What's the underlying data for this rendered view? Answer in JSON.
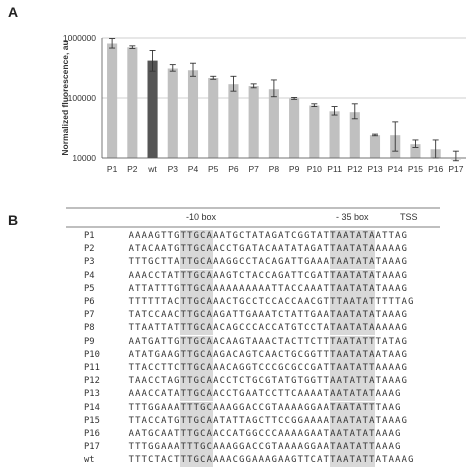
{
  "panels": {
    "a": "A",
    "b": "B"
  },
  "chart_data": {
    "type": "bar",
    "scale": "log",
    "ylabel": "Normalized fluorescence, au",
    "yticks": [
      10000,
      100000,
      1000000
    ],
    "ytick_labels": [
      "10000",
      "100000",
      "1000000"
    ],
    "ylim": [
      10000,
      1000000
    ],
    "grid": true,
    "categories": [
      "P1",
      "P2",
      "wt",
      "P3",
      "P4",
      "P5",
      "P6",
      "P7",
      "P8",
      "P9",
      "P10",
      "P11",
      "P12",
      "P13",
      "P14",
      "P15",
      "P16",
      "P17"
    ],
    "values": [
      810000,
      700000,
      420000,
      310000,
      290000,
      215000,
      170000,
      158000,
      140000,
      98000,
      75000,
      60000,
      58000,
      24000,
      24000,
      17000,
      14000,
      9500
    ],
    "errors_upper": [
      980000,
      740000,
      620000,
      360000,
      380000,
      230000,
      230000,
      172000,
      200000,
      102000,
      80000,
      72000,
      80000,
      25000,
      40000,
      20000,
      20000,
      13000
    ],
    "errors_lower": [
      680000,
      670000,
      280000,
      280000,
      230000,
      205000,
      130000,
      148000,
      105000,
      95000,
      72000,
      52000,
      45000,
      23500,
      13000,
      15000,
      10000,
      9000
    ],
    "highlight_category": "wt",
    "colors": {
      "bar": "#c0c0c0",
      "highlight": "#555555",
      "error": "#333333",
      "grid": "#bfbfbf"
    }
  },
  "alignment": {
    "headers": {
      "box10": "-10 box",
      "box35": "- 35 box",
      "tss": "TSS"
    },
    "rows": [
      {
        "name": "P1",
        "seq": "AAAAGTTGTTGCAAATGCTATAGATCGGTATTAATATAATTAG"
      },
      {
        "name": "P2",
        "seq": "ATACAATGTTGCAACCTGATACAATATAGATTAATATAAAAAG"
      },
      {
        "name": "P3",
        "seq": "TTTGCTTATTGCAAAGGCCTACAGATTGAAATAATATATAAAG"
      },
      {
        "name": "P4",
        "seq": "AAACCTATTTGCAAAGTCTACCAGATTCGATTAATATATAAAG"
      },
      {
        "name": "P5",
        "seq": "ATTATTTGTTGCAAAAAAAAAATTACCAAATTAATATATAAAG"
      },
      {
        "name": "P6",
        "seq": "TTTTTTACTTGCAAACTGCCTCCACCAACGTTTAATATTTTTAG"
      },
      {
        "name": "P7",
        "seq": "TATCCAACTTGCAAGATTGAAATCTATTGAATAATATATAAAG"
      },
      {
        "name": "P8",
        "seq": "TTAATTATTTGCAACAGCCCACCATGTCCTATAATATAAAAAG"
      },
      {
        "name": "P9",
        "seq": "AATGATTGTTGCAACAAGTAAACTACTTCTTTAATATTTATAG"
      },
      {
        "name": "P10",
        "seq": "ATATGAAGTTGCAAGACAGTCAACTGCGGTTTAATATAATAAG"
      },
      {
        "name": "P11",
        "seq": "TTACCTTCTTGCAAACAGGTCCCGCGCCGATTAATATTAAAAG"
      },
      {
        "name": "P12",
        "seq": "TAACCTAGTTGCAACCTCTGCGTATGTGGTTAATATTATAAAG"
      },
      {
        "name": "P13",
        "seq": "AAACCATATTGCAACCTGAATCCTTCAAAATAATATATAAAG"
      },
      {
        "name": "P14",
        "seq": "TTTGGAAATTTGCAAAGGACCGTAAAAGGAATAATATTTAAG"
      },
      {
        "name": "P15",
        "seq": "TTACCATGTTGCAATATTAGCTTCCGGAAAATAATATATAAAG"
      },
      {
        "name": "P16",
        "seq": "AATGCAATTTGCAACCATGGCCCAAAAGAATAATATATAAAG"
      },
      {
        "name": "P17",
        "seq": "TTTGGAAATTTGCAAAGGACCGTAAAAGGAATAATATTAAAG"
      },
      {
        "name": "wt",
        "seq": "TTTCTACTTTGCAAAACGGAAAGAAGTTCATTAATATTATAAAG"
      }
    ]
  }
}
